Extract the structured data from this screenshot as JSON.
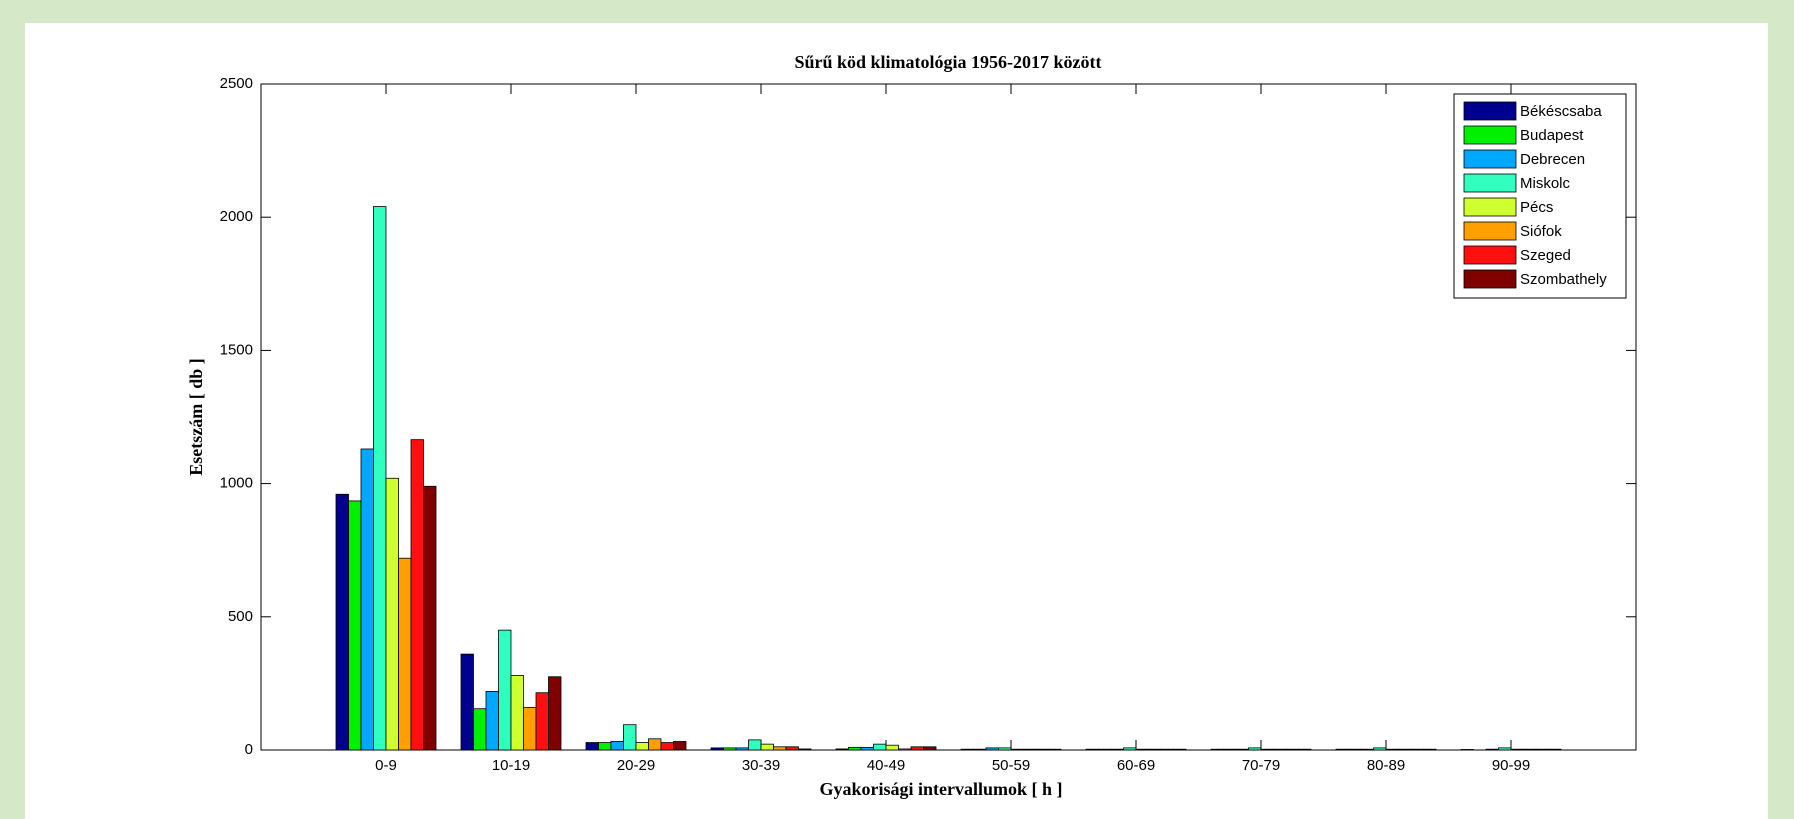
{
  "chart_data": {
    "type": "bar",
    "title": "Sűrű köd klimatológia 1956-2017 között",
    "xlabel": "Gyakorisági intervallumok [ h ]",
    "ylabel": "Esetszám [ db ]",
    "categories": [
      "0-9",
      "10-19",
      "20-29",
      "30-39",
      "40-49",
      "50-59",
      "60-69",
      "70-79",
      "80-89",
      "90-99"
    ],
    "series": [
      {
        "name": "Békéscsaba",
        "color": "#00008f",
        "values": [
          960,
          360,
          28,
          8,
          4,
          3,
          3,
          3,
          3,
          2
        ]
      },
      {
        "name": "Budapest",
        "color": "#00f000",
        "values": [
          935,
          155,
          28,
          8,
          10,
          3,
          3,
          3,
          3,
          0
        ]
      },
      {
        "name": "Debrecen",
        "color": "#00a8ff",
        "values": [
          1130,
          220,
          32,
          8,
          10,
          8,
          3,
          3,
          3,
          3
        ]
      },
      {
        "name": "Miskolc",
        "color": "#30ffc0",
        "values": [
          2040,
          450,
          95,
          38,
          22,
          8,
          8,
          8,
          8,
          8
        ]
      },
      {
        "name": "Pécs",
        "color": "#d0ff30",
        "values": [
          1020,
          280,
          28,
          22,
          18,
          3,
          3,
          3,
          3,
          3
        ]
      },
      {
        "name": "Siófok",
        "color": "#ffa000",
        "values": [
          720,
          160,
          42,
          12,
          4,
          3,
          3,
          3,
          3,
          3
        ]
      },
      {
        "name": "Szeged",
        "color": "#ff1010",
        "values": [
          1165,
          215,
          28,
          12,
          12,
          3,
          3,
          3,
          3,
          3
        ]
      },
      {
        "name": "Szombathely",
        "color": "#800000",
        "values": [
          990,
          275,
          32,
          4,
          12,
          3,
          3,
          3,
          3,
          3
        ]
      }
    ],
    "ylim": [
      0,
      2500
    ],
    "yticks": [
      0,
      500,
      1000,
      1500,
      2000,
      2500
    ],
    "legend": "upper right",
    "grid": false
  }
}
